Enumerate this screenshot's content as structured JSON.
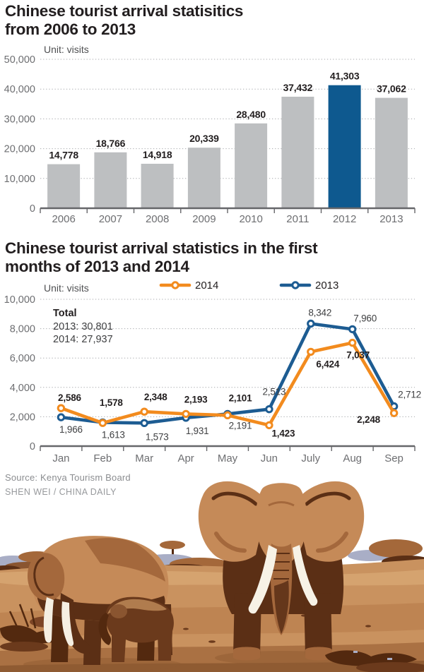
{
  "bar_chart_section": {
    "title_lines": [
      "Chinese tourist arrival statisitics",
      "from 2006 to 2013"
    ]
  },
  "line_chart_section": {
    "title_lines": [
      "Chinese tourist arrival statistics in the first",
      "months of 2013 and 2014"
    ]
  },
  "source": {
    "line1": "Source: Kenya Tourism Board",
    "line2": "SHEN WEI / CHINA DAILY"
  },
  "chart_data": [
    {
      "type": "bar",
      "title": "Chinese tourist arrival statisitics from 2006 to 2013",
      "unit_label": "Unit: visits",
      "categories": [
        "2006",
        "2007",
        "2008",
        "2009",
        "2010",
        "2011",
        "2012",
        "2013"
      ],
      "values": [
        14778,
        18766,
        14918,
        20339,
        28480,
        37432,
        41303,
        37062
      ],
      "value_labels": [
        "14,778",
        "18,766",
        "14,918",
        "20,339",
        "28,480",
        "37,432",
        "41,303",
        "37,062"
      ],
      "highlight_index": 6,
      "ylim": [
        0,
        50000
      ],
      "yticks": [
        0,
        10000,
        20000,
        30000,
        40000,
        50000
      ],
      "ytick_labels": [
        "0",
        "10,000",
        "20,000",
        "30,000",
        "40,000",
        "50,000"
      ],
      "grid": "dotted",
      "bar_color": "#bdbfc1",
      "highlight_color": "#0e598f"
    },
    {
      "type": "line",
      "title": "Chinese tourist arrival statistics in the first months of 2013 and 2014",
      "unit_label": "Unit: visits",
      "categories": [
        "Jan",
        "Feb",
        "Mar",
        "Apr",
        "May",
        "Jun",
        "July",
        "Aug",
        "Sep"
      ],
      "ylim": [
        0,
        10000
      ],
      "yticks": [
        0,
        2000,
        4000,
        6000,
        8000,
        10000
      ],
      "ytick_labels": [
        "0",
        "2,000",
        "4,000",
        "6,000",
        "8,000",
        "10,000"
      ],
      "grid": "dotted",
      "legend_position": "top",
      "annotation": {
        "title": "Total",
        "lines": [
          "2013: 30,801",
          "2014: 27,937"
        ]
      },
      "series": [
        {
          "name": "2013",
          "color": "#1d5c92",
          "bold_labels": false,
          "values": [
            1966,
            1613,
            1573,
            1931,
            2191,
            2513,
            8342,
            7960,
            2712
          ],
          "labels": [
            "1,966",
            "1,613",
            "1,573",
            "1,931",
            "2,191",
            "2,513",
            "8,342",
            "7,960",
            "2,712"
          ],
          "label_offsets": [
            [
              14,
              22
            ],
            [
              15,
              22
            ],
            [
              18,
              24
            ],
            [
              16,
              23
            ],
            [
              18,
              21
            ],
            [
              7,
              -20
            ],
            [
              13,
              -11
            ],
            [
              18,
              -11
            ],
            [
              22,
              -12
            ]
          ]
        },
        {
          "name": "2014",
          "color": "#f28b1e",
          "bold_labels": true,
          "values": [
            2586,
            1578,
            2348,
            2193,
            2101,
            1423,
            6424,
            7037,
            2248
          ],
          "labels": [
            "2,586",
            "1,578",
            "2,348",
            "2,193",
            "2,101",
            "1,423",
            "6,424",
            "7,037",
            "2,248"
          ],
          "label_offsets": [
            [
              12,
              -10
            ],
            [
              12,
              -24
            ],
            [
              16,
              -16
            ],
            [
              14,
              -16
            ],
            [
              18,
              -20
            ],
            [
              20,
              16
            ],
            [
              24,
              22
            ],
            [
              8,
              22
            ],
            [
              -36,
              14
            ]
          ]
        }
      ],
      "legend_order": [
        "2014",
        "2013"
      ]
    }
  ]
}
